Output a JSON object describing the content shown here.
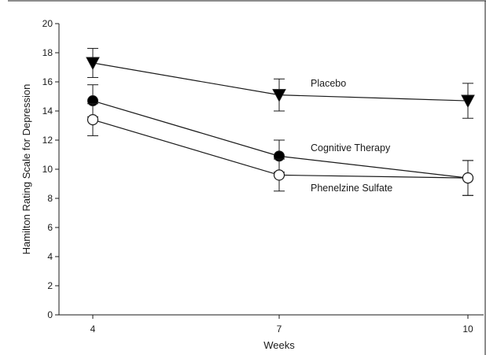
{
  "chart_data": {
    "type": "line",
    "title": "",
    "xlabel": "Weeks",
    "ylabel": "Hamilton Rating Scale for Depression",
    "x": [
      4,
      7,
      10
    ],
    "x_tick_labels": [
      "4",
      "7",
      "10"
    ],
    "ylim": [
      0,
      20
    ],
    "y_ticks": [
      0,
      2,
      4,
      6,
      8,
      10,
      12,
      14,
      16,
      18,
      20
    ],
    "y_tick_labels": [
      "0",
      "2",
      "4",
      "6",
      "8",
      "10",
      "12",
      "14",
      "16",
      "18",
      "20"
    ],
    "grid": false,
    "legend": "none (series labeled directly on plot)",
    "series": [
      {
        "name": "Placebo",
        "marker": "filled-down-triangle",
        "values": [
          17.3,
          15.1,
          14.7
        ],
        "error": [
          1.0,
          1.1,
          1.2
        ]
      },
      {
        "name": "Cognitive Therapy",
        "marker": "filled-circle",
        "values": [
          14.7,
          10.9,
          9.4
        ],
        "error": [
          1.1,
          1.1,
          1.2
        ]
      },
      {
        "name": "Phenelzine Sulfate",
        "marker": "open-circle",
        "values": [
          13.4,
          9.6,
          9.4
        ],
        "error": [
          1.1,
          1.1,
          1.2
        ]
      }
    ],
    "colors": {
      "line": "#1a1a1a",
      "marker_fill": "#000000",
      "open_marker_fill": "#ffffff"
    }
  }
}
